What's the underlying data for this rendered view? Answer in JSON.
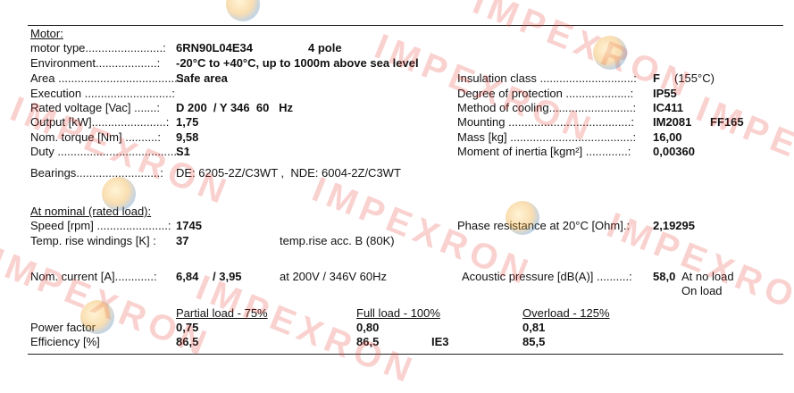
{
  "watermark": {
    "text": "IMPEXRON"
  },
  "motor": {
    "heading": "Motor:",
    "rows": [
      {
        "label": "motor type",
        "value": "6RN90L04E34",
        "extra": "4 pole"
      },
      {
        "label": "Environment",
        "value": "-20°C to +40°C, up to 1000m above sea level"
      },
      {
        "label": "Area",
        "value": "Safe area"
      },
      {
        "label": "Execution",
        "value": ""
      },
      {
        "label": "Rated voltage [Vac]",
        "value": "D 200  / Y 346  60   Hz"
      },
      {
        "label": "Output [kW]",
        "value": "1,75"
      },
      {
        "label": "Nom. torque [Nm]",
        "value": "9,58"
      },
      {
        "label": "Duty",
        "value": "S1"
      },
      {
        "label": "Bearings",
        "value": "DE: 6205-2Z/C3WT ,  NDE: 6004-2Z/C3WT"
      }
    ],
    "right_rows": [
      {
        "label": "Insulation class",
        "value": "F",
        "extra": "(155°C)"
      },
      {
        "label": "Degree of protection",
        "value": "IP55"
      },
      {
        "label": "Method of cooling",
        "value": "IC411"
      },
      {
        "label": "Mounting",
        "value": "IM2081",
        "extra": "FF165"
      },
      {
        "label": "Mass [kg]",
        "value": "16,00"
      },
      {
        "label": "Moment of inertia [kgm²]",
        "value": "0,00360"
      }
    ]
  },
  "nominal": {
    "heading": "At nominal (rated load):",
    "speed_label": "Speed [rpm]",
    "speed_value": "1745",
    "temp_label": "Temp. rise windings [K] :",
    "temp_value": "37",
    "temp_note": "temp.rise acc. B (80K)",
    "phase_label": "Phase resistance at 20°C [Ohm].:",
    "phase_value": "2,19295",
    "current_label": "Nom. current [A]",
    "current_d": "6,84",
    "current_y": "/ 3,95",
    "current_note": "at 200V / 346V 60Hz",
    "acoustic_label": "Acoustic pressure [dB(A)]",
    "acoustic_value": "58,0",
    "acoustic_no_load": "At no load",
    "acoustic_on_load": "On load"
  },
  "load_table": {
    "headers": [
      "Partial load - 75%",
      "Full load - 100%",
      "Overload - 125%"
    ],
    "rows": [
      {
        "label": "Power factor",
        "values": [
          "0,75",
          "0,80",
          "0,81"
        ]
      },
      {
        "label": "Efficiency [%]",
        "values": [
          "86,5",
          "86,5",
          "85,5"
        ],
        "class_mark": "IE3"
      }
    ]
  }
}
